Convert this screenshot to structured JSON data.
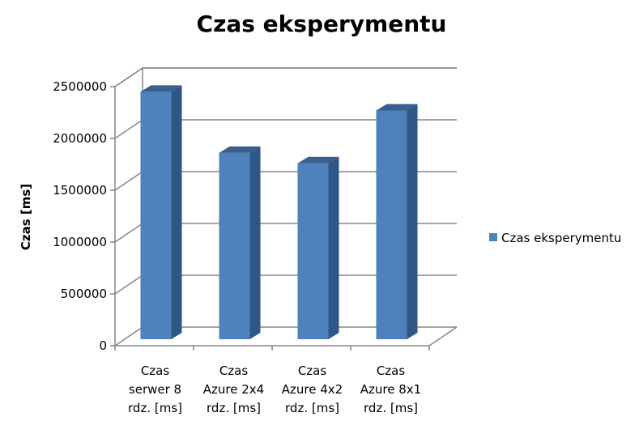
{
  "chart_data": {
    "type": "bar",
    "title": "Czas eksperymentu",
    "ylabel": "Czas [ms]",
    "xlabel": "",
    "categories": [
      [
        "Czas",
        "serwer 8",
        "rdz. [ms]"
      ],
      [
        "Czas",
        "Azure 2x4",
        "rdz. [ms]"
      ],
      [
        "Czas",
        "Azure 4x2",
        "rdz. [ms]"
      ],
      [
        "Czas",
        "Azure 8x1",
        "rdz. [ms]"
      ]
    ],
    "series": [
      {
        "name": "Czas eksperymentu",
        "values": [
          2450000,
          1860000,
          1760000,
          2270000
        ]
      }
    ],
    "ylim": [
      0,
      2500000
    ],
    "yticks": [
      "0",
      "500000",
      "1000000",
      "1500000",
      "2000000",
      "2500000"
    ],
    "grid": true,
    "legend_position": "right",
    "three_d": true,
    "colors": {
      "bar_front": "#4f81bd",
      "bar_side": "#2f5786",
      "bar_top": "#395f8f",
      "grid": "#868686",
      "axis": "#868686"
    }
  }
}
